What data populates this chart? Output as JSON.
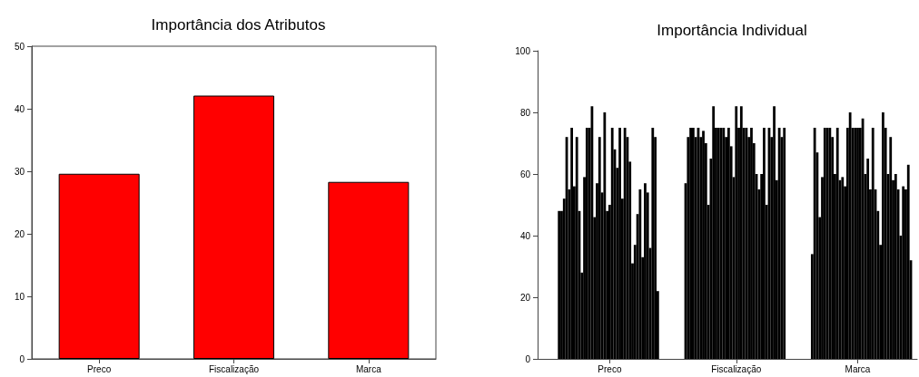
{
  "chart_data": [
    {
      "type": "bar",
      "title": "Importância dos Atributos",
      "categories": [
        "Preco",
        "Fiscalização",
        "Marca"
      ],
      "values": [
        29.6,
        42.1,
        28.3
      ],
      "color": "#ff0000",
      "ylim": [
        0,
        50
      ],
      "yticks": [
        0,
        10,
        20,
        30,
        40,
        50
      ],
      "grid": false
    },
    {
      "type": "bar",
      "title": "Importância Individual",
      "categories": [
        null,
        null,
        null,
        null,
        null,
        null,
        null,
        null,
        null,
        null,
        null,
        null,
        null,
        null,
        null,
        null,
        null,
        null,
        null,
        null,
        null,
        null,
        null,
        null,
        null,
        null,
        null,
        null,
        "Preco",
        null,
        null,
        null,
        null,
        null,
        null,
        null,
        null,
        null,
        null,
        null,
        null,
        null,
        null,
        null,
        null,
        null,
        null,
        null,
        null,
        null,
        null,
        null,
        null,
        null,
        null,
        null,
        null,
        null,
        null,
        null,
        null,
        null,
        null,
        null,
        null,
        null,
        null,
        null,
        null,
        null,
        null,
        null,
        null,
        null,
        null,
        null,
        null,
        null,
        "Fiscalização",
        null,
        null,
        null,
        null,
        null,
        null,
        null,
        null,
        null,
        null,
        null,
        null,
        null,
        null,
        null,
        null,
        null,
        null,
        null,
        null,
        null,
        null,
        null,
        null,
        null,
        null,
        null,
        null,
        null,
        null,
        null,
        null,
        null,
        null,
        null,
        null,
        null,
        null,
        null,
        null,
        null,
        null,
        null,
        null,
        null,
        null,
        null,
        "Marca",
        null,
        null,
        null,
        null,
        null,
        null,
        null,
        null,
        null,
        null,
        null,
        null,
        null,
        null,
        null,
        null,
        null,
        null,
        null,
        null,
        null,
        null,
        null
      ],
      "values": [
        null,
        null,
        null,
        null,
        null,
        null,
        null,
        null,
        48,
        48,
        52,
        72,
        55,
        75,
        56,
        72,
        48,
        28,
        59,
        75,
        75,
        82,
        46,
        57,
        72,
        54,
        80,
        48,
        50,
        75,
        68,
        62,
        75,
        52,
        75,
        72,
        64,
        31,
        37,
        47,
        55,
        33,
        57,
        54,
        36,
        75,
        72,
        22,
        null,
        null,
        null,
        null,
        null,
        null,
        null,
        null,
        null,
        null,
        57,
        72,
        75,
        75,
        72,
        75,
        72,
        74,
        70,
        50,
        65,
        82,
        75,
        75,
        75,
        75,
        72,
        75,
        69,
        59,
        82,
        75,
        82,
        75,
        75,
        72,
        75,
        70,
        60,
        55,
        60,
        75,
        50,
        75,
        72,
        82,
        58,
        75,
        72,
        75,
        null,
        null,
        null,
        null,
        null,
        null,
        null,
        null,
        null,
        null,
        34,
        75,
        67,
        46,
        59,
        75,
        75,
        75,
        72,
        60,
        75,
        58,
        59,
        56,
        75,
        80,
        75,
        75,
        75,
        75,
        78,
        60,
        65,
        55,
        75,
        55,
        48,
        37,
        80,
        75,
        60,
        72,
        58,
        60,
        55,
        40,
        56,
        55,
        63,
        32,
        null,
        null
      ],
      "color": "#000000",
      "ylim": [
        0,
        100
      ],
      "yticks": [
        0,
        20,
        40,
        60,
        80,
        100
      ],
      "grid": false
    }
  ]
}
